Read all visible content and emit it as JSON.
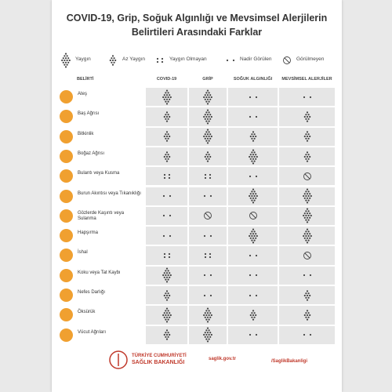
{
  "header": {
    "title": "COVID-19, Grip, Soğuk Algınlığı ve Mevsimsel Alerjilerin Belirtileri Arasındaki Farklar"
  },
  "legend": [
    "Yaygın",
    "Az Yaygın",
    "Yaygın Olmayan",
    "Nadir Görülen",
    "Görülmeyen"
  ],
  "table": {
    "columns": [
      "BELİRTİ",
      "COVID-19",
      "GRİP",
      "SOĞUK ALGINLIĞI",
      "MEVSİMSEL ALERJİLER"
    ],
    "rows": [
      [
        "Ateş",
        "Yaygın",
        "Yaygın",
        "Nadir Görülen",
        "Nadir Görülen"
      ],
      [
        "Baş Ağrısı",
        "Az Yaygın",
        "Yaygın",
        "Nadir Görülen",
        "Az Yaygın"
      ],
      [
        "Bitkinlik",
        "Az Yaygın",
        "Yaygın",
        "Az Yaygın",
        "Az Yaygın"
      ],
      [
        "Boğaz Ağrısı",
        "Az Yaygın",
        "Az Yaygın",
        "Yaygın",
        "Az Yaygın"
      ],
      [
        "Bulantı veya Kusma",
        "Yaygın Olmayan",
        "Yaygın Olmayan",
        "Nadir Görülen",
        "Görülmeyen"
      ],
      [
        "Burun Akıntısı veya Tıkanıklığı",
        "Nadir Görülen",
        "Nadir Görülen",
        "Yaygın",
        "Yaygın"
      ],
      [
        "Gözlerde Kaşıntı veya Sulanma",
        "Nadir Görülen",
        "Görülmeyen",
        "Görülmeyen",
        "Yaygın"
      ],
      [
        "Hapşırma",
        "Nadir Görülen",
        "Nadir Görülen",
        "Yaygın",
        "Yaygın"
      ],
      [
        "İshal",
        "Yaygın Olmayan",
        "Yaygın Olmayan",
        "Nadir Görülen",
        "Görülmeyen"
      ],
      [
        "Koku veya Tat Kaybı",
        "Yaygın",
        "Nadir Görülen",
        "Nadir Görülen",
        "Nadir Görülen"
      ],
      [
        "Nefes Darlığı",
        "Az Yaygın",
        "Nadir Görülen",
        "Nadir Görülen",
        "Az Yaygın"
      ],
      [
        "Öksürük",
        "Yaygın",
        "Yaygın",
        "Az Yaygın",
        "Az Yaygın"
      ],
      [
        "Vücut Ağrıları",
        "Az Yaygın",
        "Yaygın",
        "Nadir Görülen",
        "Nadir Görülen"
      ]
    ]
  },
  "footer": {
    "org_line1": "TÜRKİYE CUMHURİYETİ",
    "org_line2": "SAĞLIK BAKANLIĞI",
    "website": "saglik.gov.tr",
    "social": "/SaglikBakanligi"
  }
}
